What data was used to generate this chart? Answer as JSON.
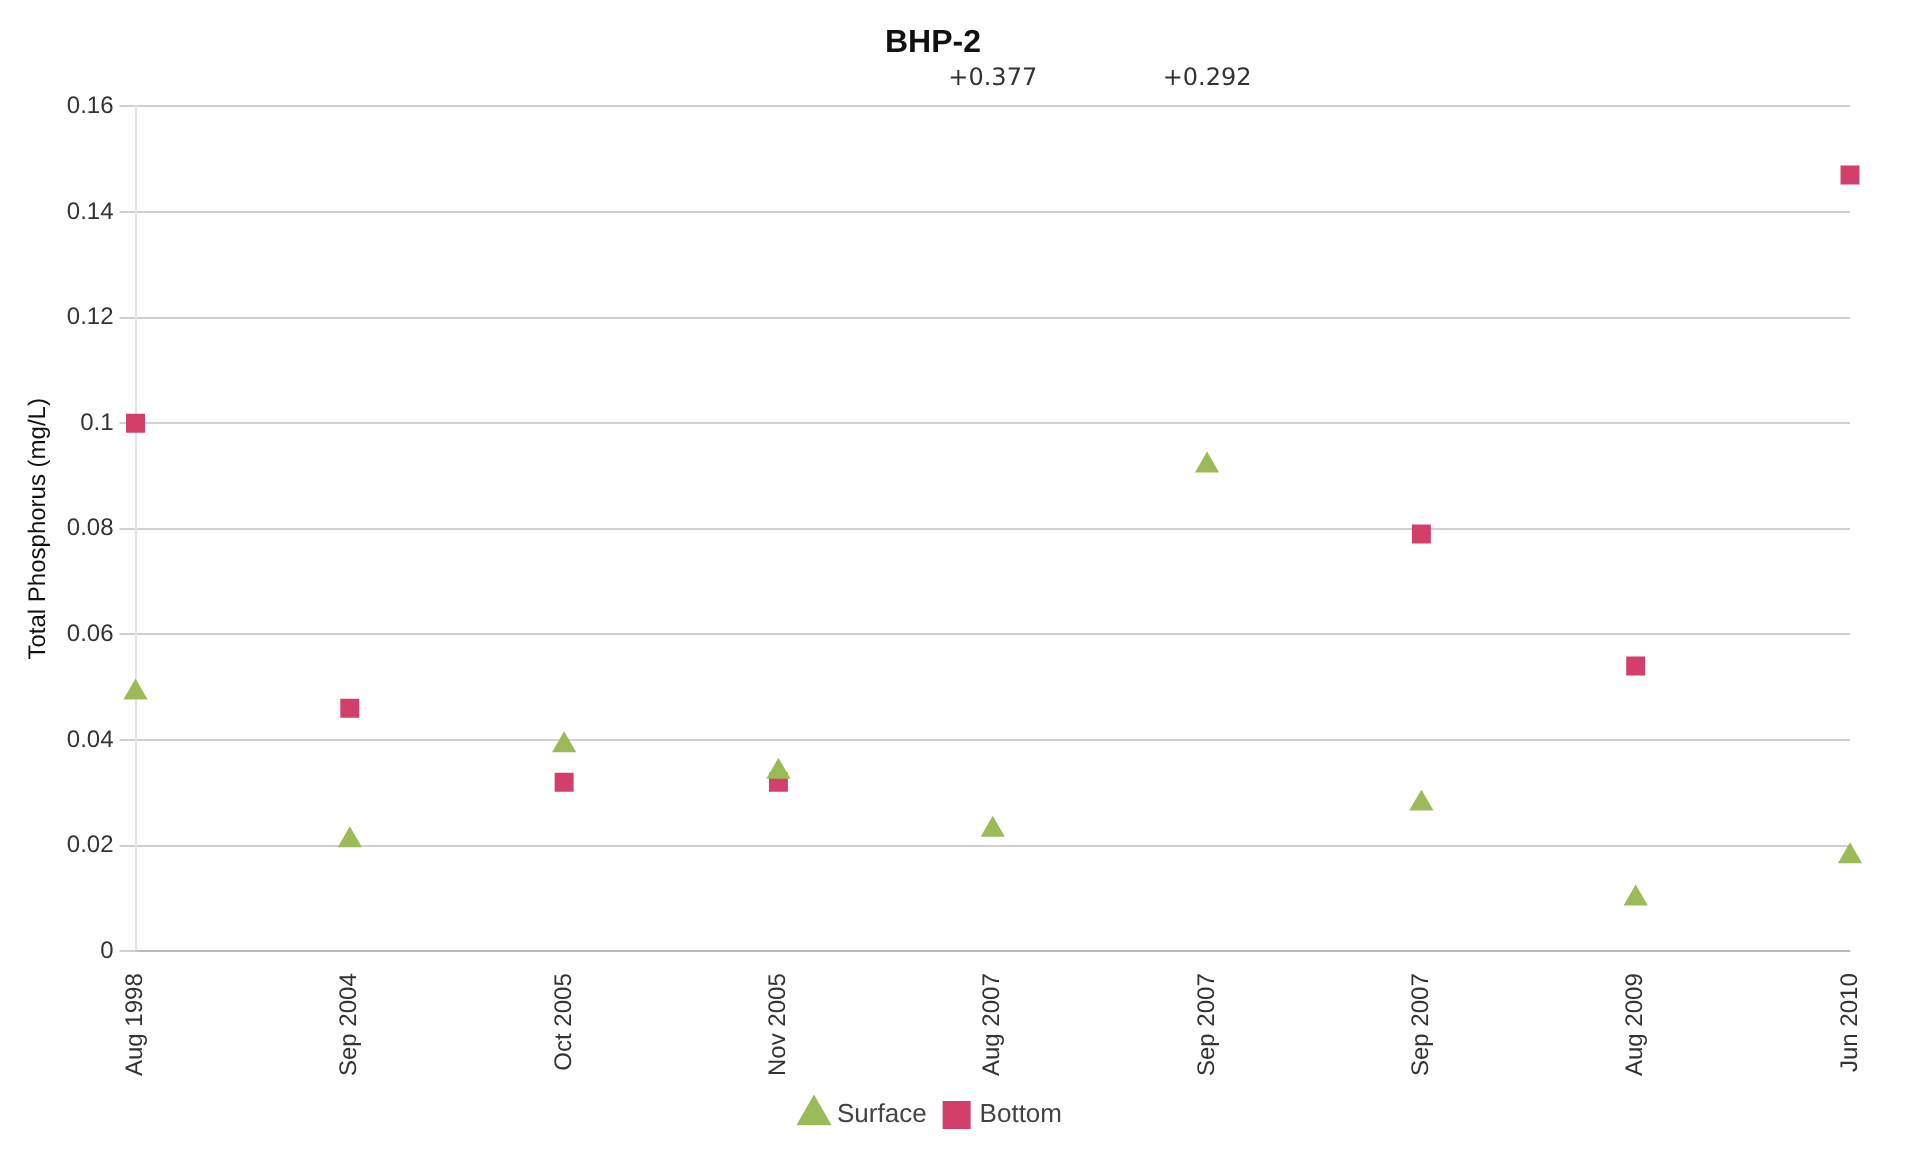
{
  "chart_data": {
    "type": "scatter",
    "title": "BHP-2",
    "ylabel": "Total Phosphorus (mg/L)",
    "categories": [
      "Aug 1998",
      "Sep 2004",
      "Oct 2005",
      "Nov 2005",
      "Aug 2007",
      "Sep 2007",
      "Sep 2007",
      "Aug 2009",
      "Jun 2010"
    ],
    "series": [
      {
        "name": "Surface",
        "color": "#9bbb59",
        "marker": "triangle",
        "values": [
          0.049,
          0.021,
          0.039,
          0.034,
          0.023,
          0.092,
          0.028,
          0.01,
          0.018
        ]
      },
      {
        "name": "Bottom",
        "color": "#d2406a",
        "marker": "square",
        "values": [
          0.1,
          0.046,
          0.032,
          0.032,
          null,
          null,
          0.079,
          0.054,
          0.147
        ]
      }
    ],
    "ylim": [
      0,
      0.16
    ],
    "yticks": [
      0,
      0.02,
      0.04,
      0.06,
      0.08,
      0.1,
      0.12,
      0.14,
      0.16
    ],
    "annotations": [
      "+0.377",
      "+0.292"
    ],
    "grid": "y",
    "legend": "bottom"
  }
}
